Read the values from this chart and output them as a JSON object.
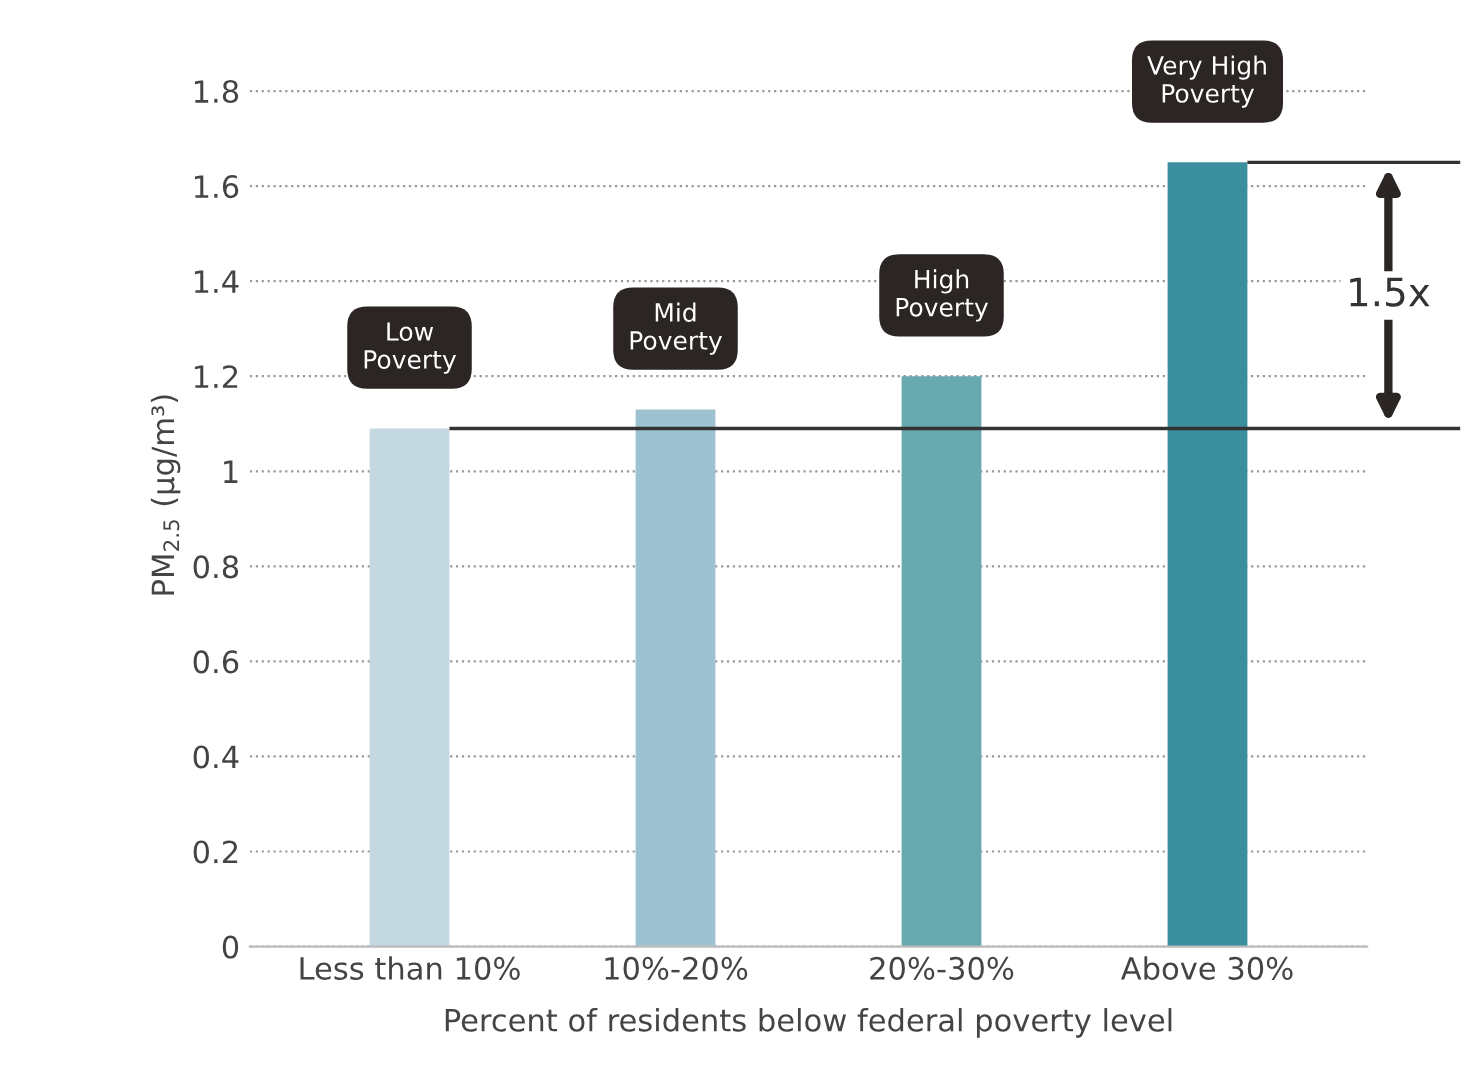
{
  "chart_data": {
    "type": "bar",
    "xlabel": "Percent of residents below federal poverty level",
    "ylabel": "PM$_{2.5}$ (µg/m³)",
    "categories": [
      "Less than 10%",
      "10%-20%",
      "20%-30%",
      "Above 30%"
    ],
    "values": [
      1.09,
      1.13,
      1.2,
      1.65
    ],
    "colors": [
      "#c3d8e1",
      "#9cc3cf",
      "#68a8af",
      "#3b8e9d"
    ],
    "ylim": [
      0,
      1.9
    ],
    "yticks": [
      0,
      0.2,
      0.4,
      0.6,
      0.8,
      1,
      1.2,
      1.4,
      1.6,
      1.8
    ],
    "grid": "y",
    "ref_lines": [
      {
        "axis": "y",
        "value": 1.09,
        "color": "#333333"
      },
      {
        "axis": "y",
        "value": 1.65,
        "color": "#333333"
      }
    ],
    "annotations": [
      {
        "text": "Low\nPoverty",
        "x": "Less than 10%",
        "y": 1.09
      },
      {
        "text": "Mid\nPoverty",
        "x": "10%-20%",
        "y": 1.13
      },
      {
        "text": "High\nPoverty",
        "x": "20%-30%",
        "y": 1.2
      },
      {
        "text": "Very High\nPoverty",
        "x": "Above 30%",
        "y": 1.65
      },
      "1.5x"
    ]
  }
}
